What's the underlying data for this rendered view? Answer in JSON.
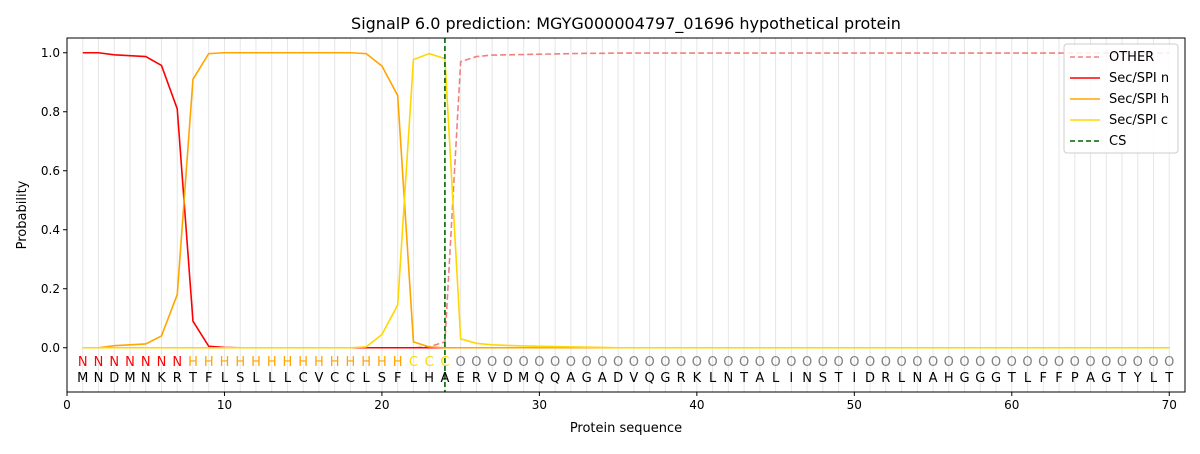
{
  "chart_data": {
    "type": "line",
    "title": "SignalP 6.0 prediction: MGYG000004797_01696 hypothetical protein",
    "xlabel": "Protein sequence",
    "ylabel": "Probability",
    "xlim": [
      0,
      71
    ],
    "ylim": [
      -0.15,
      1.05
    ],
    "xticks": [
      0,
      10,
      20,
      30,
      40,
      50,
      60,
      70
    ],
    "yticks": [
      "0.0",
      "0.2",
      "0.4",
      "0.6",
      "0.8",
      "1.0"
    ],
    "legend_position": "top-right",
    "sequence": "MNDMNKRTFLSLLLCVCCLSFLHAERVDMQQAGADVQGRKLNTALINSTIDRLNAHGGGTLFFPAGTYLT",
    "labels": "NNNNNNNHHHHHHHHHHHHHHCCCOOOOOOOOOOOOOOOOOOOOOOOOOOOOOOOOOOOOOOOOOOOOOO",
    "label_colors": {
      "N": "#ff0000",
      "H": "#ffa500",
      "C": "#ffd700",
      "O": "#808080"
    },
    "cleavage_site": 24,
    "series": [
      {
        "name": "OTHER",
        "color": "#f08080",
        "dash": true,
        "values": [
          0,
          0,
          0,
          0,
          0,
          0,
          0,
          0,
          0,
          0,
          0,
          0,
          0,
          0,
          0,
          0,
          0,
          0,
          0,
          0,
          0,
          0,
          0.003,
          0.02,
          0.97,
          0.987,
          0.992,
          0.993,
          0.994,
          0.995,
          0.996,
          0.997,
          0.998,
          0.998,
          0.999,
          0.999,
          0.999,
          0.999,
          0.999,
          0.999,
          0.999,
          0.999,
          0.999,
          0.999,
          0.999,
          0.999,
          0.999,
          0.999,
          0.999,
          0.999,
          0.999,
          0.999,
          0.999,
          0.999,
          0.999,
          0.999,
          0.999,
          0.999,
          0.999,
          0.999,
          0.999,
          0.999,
          0.999,
          0.999,
          0.999,
          0.999,
          0.999,
          0.999,
          0.999,
          0.999
        ]
      },
      {
        "name": "Sec/SPI n",
        "color": "#ff0000",
        "values": [
          1.0,
          1.0,
          0.993,
          0.99,
          0.987,
          0.957,
          0.81,
          0.09,
          0.005,
          0.001,
          0,
          0,
          0,
          0,
          0,
          0,
          0,
          0,
          0,
          0,
          0,
          0,
          0,
          0,
          0,
          0,
          0,
          0,
          0,
          0,
          0,
          0,
          0,
          0,
          0,
          0,
          0,
          0,
          0,
          0,
          0,
          0,
          0,
          0,
          0,
          0,
          0,
          0,
          0,
          0,
          0,
          0,
          0,
          0,
          0,
          0,
          0,
          0,
          0,
          0,
          0,
          0,
          0,
          0,
          0,
          0,
          0,
          0,
          0,
          0
        ]
      },
      {
        "name": "Sec/SPI h",
        "color": "#ffa500",
        "values": [
          0,
          0,
          0.007,
          0.01,
          0.013,
          0.04,
          0.18,
          0.91,
          0.997,
          1.0,
          1.0,
          1.0,
          1.0,
          1.0,
          1.0,
          1.0,
          1.0,
          1.0,
          0.997,
          0.955,
          0.855,
          0.02,
          0.003,
          0,
          0,
          0,
          0,
          0,
          0,
          0,
          0,
          0,
          0,
          0,
          0,
          0,
          0,
          0,
          0,
          0,
          0,
          0,
          0,
          0,
          0,
          0,
          0,
          0,
          0,
          0,
          0,
          0,
          0,
          0,
          0,
          0,
          0,
          0,
          0,
          0,
          0,
          0,
          0,
          0,
          0,
          0,
          0,
          0,
          0,
          0
        ]
      },
      {
        "name": "Sec/SPI c",
        "color": "#ffd700",
        "values": [
          0,
          0,
          0,
          0,
          0,
          0,
          0,
          0,
          0,
          0,
          0,
          0,
          0,
          0,
          0,
          0,
          0,
          0,
          0.003,
          0.045,
          0.145,
          0.977,
          0.997,
          0.98,
          0.03,
          0.015,
          0.01,
          0.008,
          0.006,
          0.005,
          0.004,
          0.003,
          0.002,
          0.001,
          0,
          0,
          0,
          0,
          0,
          0,
          0,
          0,
          0,
          0,
          0,
          0,
          0,
          0,
          0,
          0,
          0,
          0,
          0,
          0,
          0,
          0,
          0,
          0,
          0,
          0,
          0,
          0,
          0,
          0,
          0,
          0,
          0,
          0,
          0,
          0
        ]
      }
    ],
    "cs_legend": {
      "name": "CS",
      "color": "#006400"
    }
  }
}
